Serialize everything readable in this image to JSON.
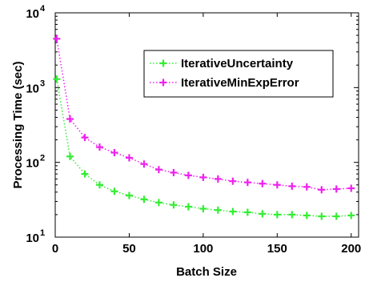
{
  "chart_data": {
    "type": "line",
    "title": "",
    "xlabel": "Batch Size",
    "ylabel": "Processing Time (sec)",
    "x_ticks": [
      0,
      50,
      100,
      150,
      200
    ],
    "y_scale": "log",
    "ylim": [
      10,
      10000
    ],
    "xlim": [
      0,
      205
    ],
    "y_tick_labels": [
      {
        "value": 10,
        "base": "10",
        "exp": "1"
      },
      {
        "value": 100,
        "base": "10",
        "exp": "2"
      },
      {
        "value": 1000,
        "base": "10",
        "exp": "3"
      },
      {
        "value": 10000,
        "base": "10",
        "exp": "4"
      }
    ],
    "grid": false,
    "legend_position": "top-right",
    "series": [
      {
        "name": "IterativeUncertainty",
        "color": "#33ee33",
        "marker": "plus",
        "line_style": "dotted",
        "x": [
          1,
          10,
          20,
          30,
          40,
          50,
          60,
          70,
          80,
          90,
          100,
          110,
          120,
          130,
          140,
          150,
          160,
          170,
          180,
          190,
          200
        ],
        "y": [
          1300,
          120,
          70,
          50,
          41,
          36,
          32,
          29,
          27,
          25.5,
          24,
          23,
          22,
          21.5,
          20.5,
          20,
          20,
          19.5,
          19,
          19,
          19.5
        ]
      },
      {
        "name": "IterativeMinExpError",
        "color": "#ee22ee",
        "marker": "plus",
        "line_style": "dotted",
        "x": [
          1,
          10,
          20,
          30,
          40,
          50,
          60,
          70,
          80,
          90,
          100,
          110,
          120,
          130,
          140,
          150,
          160,
          170,
          180,
          190,
          200
        ],
        "y": [
          4500,
          380,
          215,
          160,
          135,
          115,
          95,
          80,
          73,
          67,
          63,
          60,
          56,
          54,
          52,
          50,
          48,
          47,
          43,
          44,
          45
        ]
      }
    ]
  }
}
